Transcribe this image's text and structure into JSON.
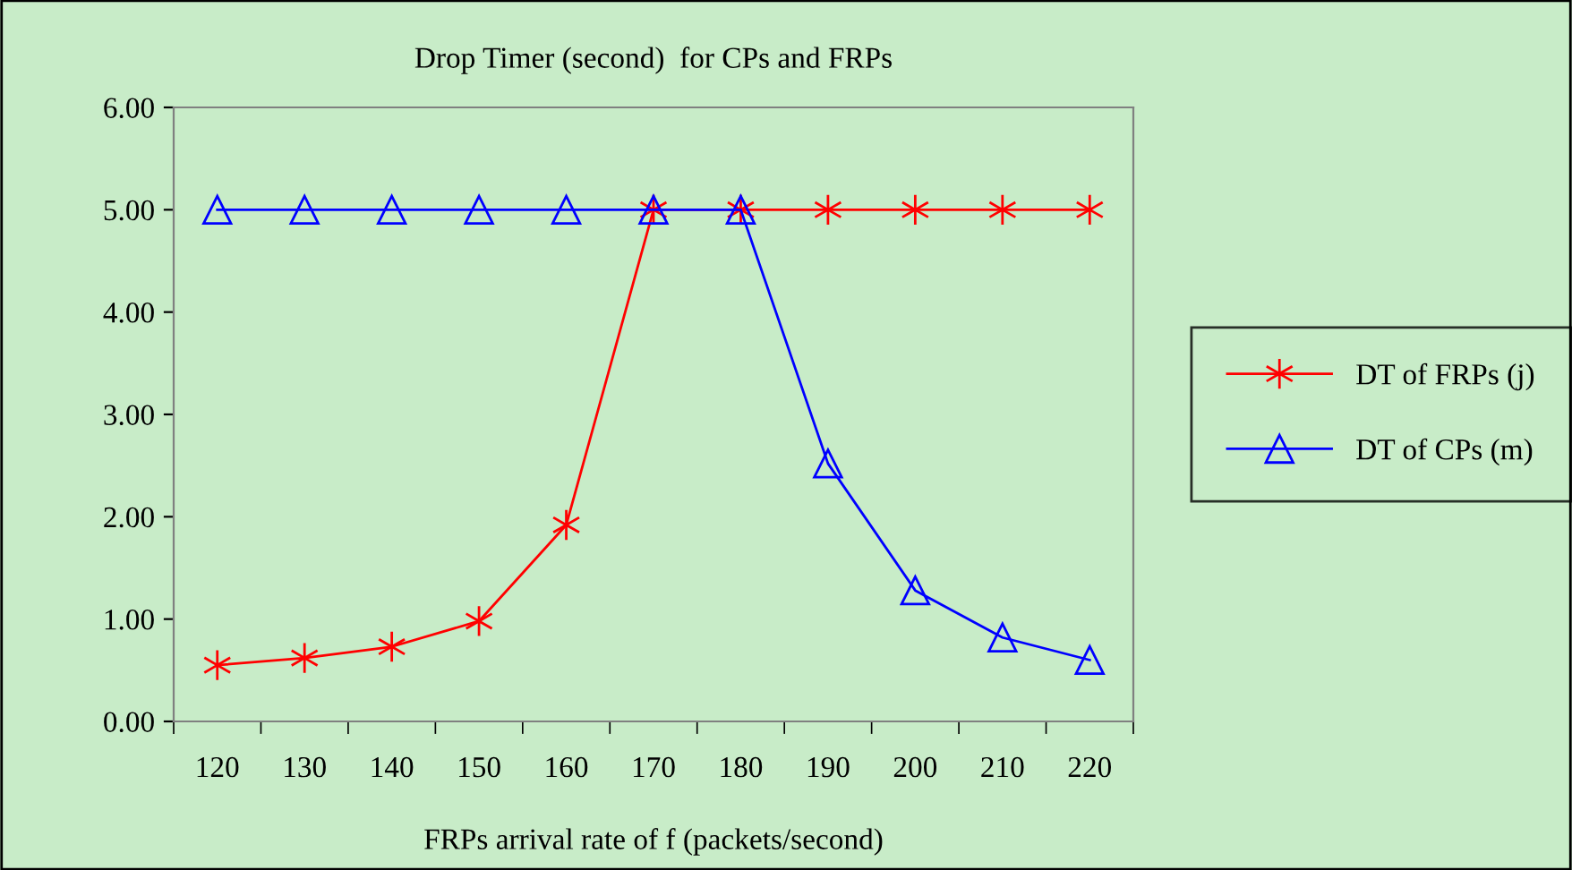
{
  "chart_data": {
    "type": "line",
    "title": "Drop Timer (second)  for CPs and FRPs",
    "xlabel": "FRPs arrival rate of f (packets/second)",
    "categories": [
      "120",
      "130",
      "140",
      "150",
      "160",
      "170",
      "180",
      "190",
      "200",
      "210",
      "220"
    ],
    "series": [
      {
        "name": "DT of FRPs (j)",
        "color": "#ff0000",
        "marker": "cross",
        "values": [
          0.55,
          0.62,
          0.73,
          0.98,
          1.92,
          5.0,
          5.0,
          5.0,
          5.0,
          5.0,
          5.0
        ]
      },
      {
        "name": "DT of CPs (m)",
        "color": "#0000ff",
        "marker": "triangle",
        "values": [
          5.0,
          5.0,
          5.0,
          5.0,
          5.0,
          5.0,
          5.0,
          2.52,
          1.28,
          0.82,
          0.6
        ]
      }
    ],
    "ylim": [
      0,
      6
    ],
    "yticks": [
      {
        "value": 0,
        "label": "0.00"
      },
      {
        "value": 1,
        "label": "1.00"
      },
      {
        "value": 2,
        "label": "2.00"
      },
      {
        "value": 3,
        "label": "3.00"
      },
      {
        "value": 4,
        "label": "4.00"
      },
      {
        "value": 5,
        "label": "5.00"
      },
      {
        "value": 6,
        "label": "6.00"
      }
    ],
    "grid": false,
    "legend": "right",
    "line_style": "solid"
  }
}
